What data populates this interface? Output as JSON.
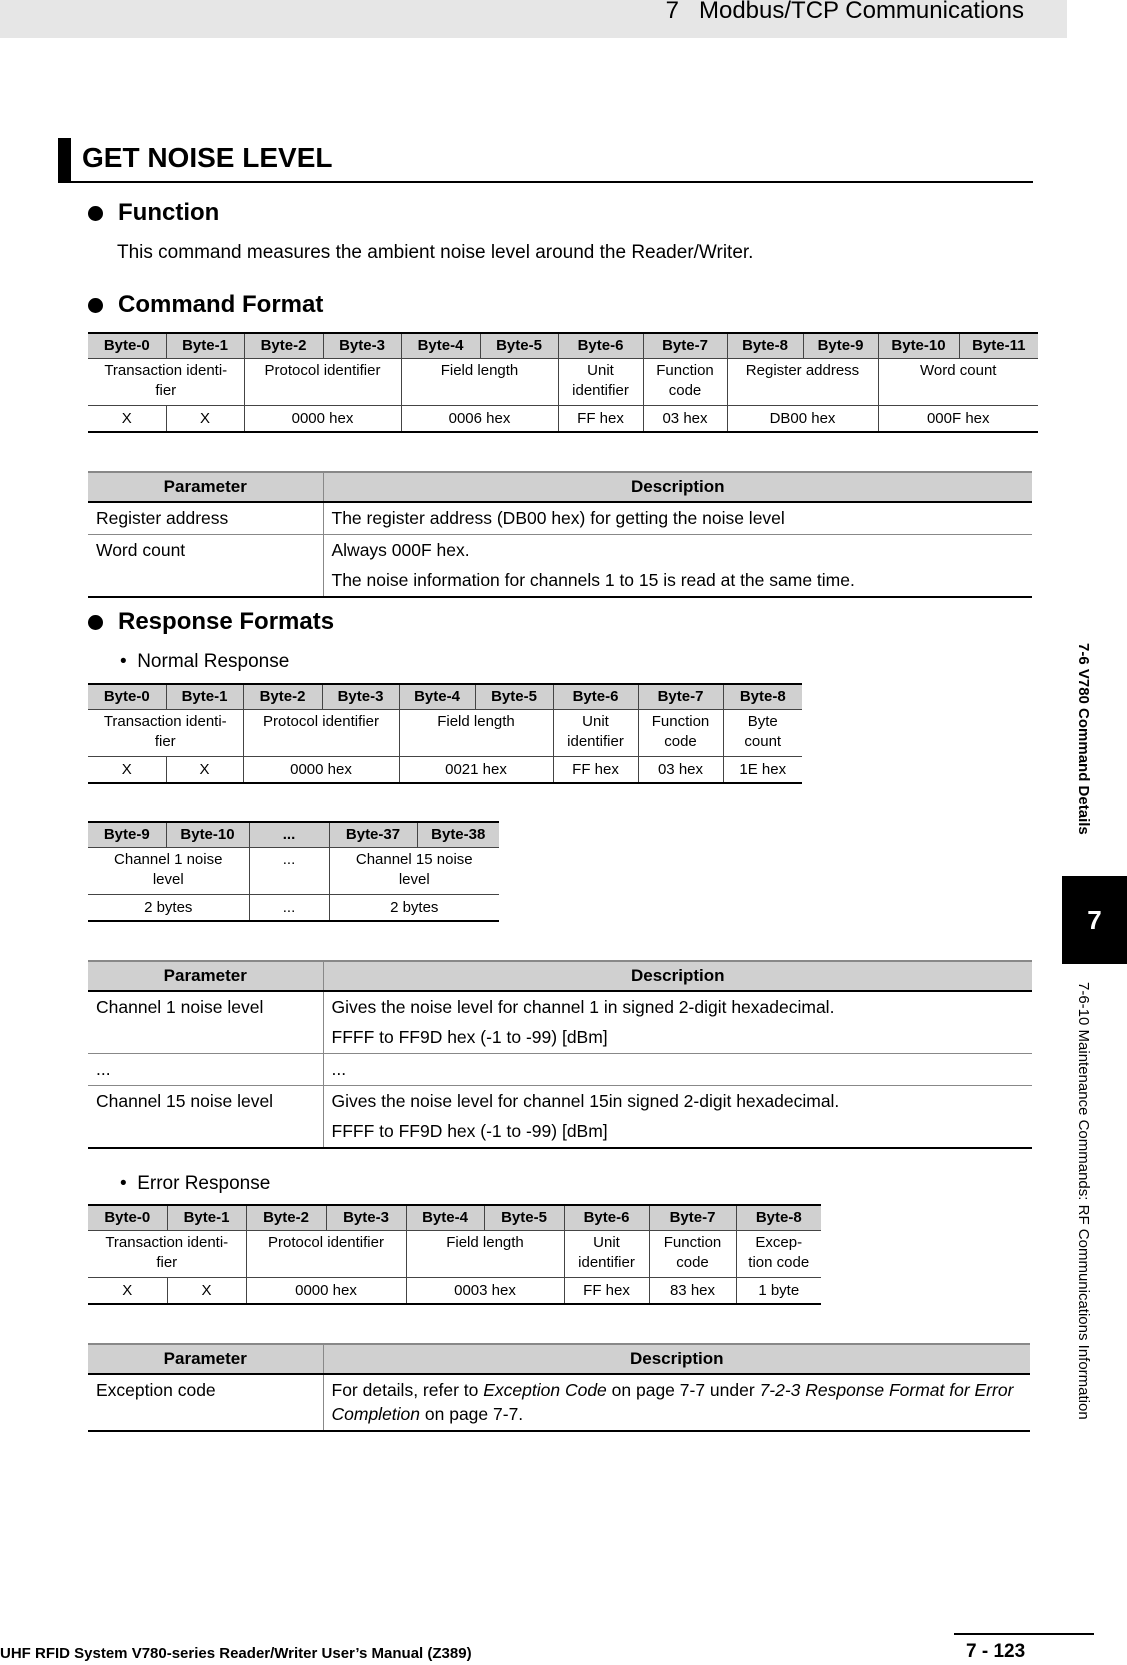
{
  "header": {
    "chapter": "7   Modbus/TCP Communications"
  },
  "title": "GET NOISE LEVEL",
  "function": {
    "heading": "Function",
    "text": "This command measures the ambient noise level around the Reader/Writer."
  },
  "command_format": {
    "heading": "Command Format",
    "table": {
      "headers": [
        "Byte-0",
        "Byte-1",
        "Byte-2",
        "Byte-3",
        "Byte-4",
        "Byte-5",
        "Byte-6",
        "Byte-7",
        "Byte-8",
        "Byte-9",
        "Byte-10",
        "Byte-11"
      ],
      "rows": [
        [
          {
            "text": "Transaction identi-\nfier",
            "span": 2
          },
          {
            "text": "Protocol identifier",
            "span": 2
          },
          {
            "text": "Field length",
            "span": 2
          },
          {
            "text": "Unit\nidentifier",
            "span": 1
          },
          {
            "text": "Function\ncode",
            "span": 1
          },
          {
            "text": "Register address",
            "span": 2
          },
          {
            "text": "Word count",
            "span": 2
          }
        ],
        [
          {
            "text": "X",
            "span": 1
          },
          {
            "text": "X",
            "span": 1
          },
          {
            "text": "0000 hex",
            "span": 2
          },
          {
            "text": "0006 hex",
            "span": 2
          },
          {
            "text": "FF hex",
            "span": 1
          },
          {
            "text": "03 hex",
            "span": 1
          },
          {
            "text": "DB00 hex",
            "span": 2
          },
          {
            "text": "000F hex",
            "span": 2
          }
        ]
      ]
    },
    "params": {
      "headers": [
        "Parameter",
        "Description"
      ],
      "rows": [
        {
          "param": "Register address",
          "desc": [
            "The register address (DB00 hex) for getting the noise level"
          ]
        },
        {
          "param": "Word count",
          "desc": [
            "Always 000F hex.",
            "The noise information for channels 1 to 15 is read at the same time."
          ]
        }
      ]
    }
  },
  "response_formats": {
    "heading": "Response Formats",
    "normal": {
      "label": "•  Normal Response",
      "table": {
        "headers": [
          "Byte-0",
          "Byte-1",
          "Byte-2",
          "Byte-3",
          "Byte-4",
          "Byte-5",
          "Byte-6",
          "Byte-7",
          "Byte-8"
        ],
        "rows": [
          [
            {
              "text": "Transaction identi-\nfier",
              "span": 2
            },
            {
              "text": "Protocol identifier",
              "span": 2
            },
            {
              "text": "Field length",
              "span": 2
            },
            {
              "text": "Unit\nidentifier",
              "span": 1
            },
            {
              "text": "Function\ncode",
              "span": 1
            },
            {
              "text": "Byte\ncount",
              "span": 1
            }
          ],
          [
            {
              "text": "X",
              "span": 1
            },
            {
              "text": "X",
              "span": 1
            },
            {
              "text": "0000 hex",
              "span": 2
            },
            {
              "text": "0021 hex",
              "span": 2
            },
            {
              "text": "FF hex",
              "span": 1
            },
            {
              "text": "03 hex",
              "span": 1
            },
            {
              "text": "1E hex",
              "span": 1
            }
          ]
        ]
      },
      "table2": {
        "headers": [
          "Byte-9",
          "Byte-10",
          "...",
          "Byte-37",
          "Byte-38"
        ],
        "rows": [
          [
            {
              "text": "Channel 1 noise\nlevel",
              "span": 2
            },
            {
              "text": "...",
              "span": 1
            },
            {
              "text": "Channel 15 noise\nlevel",
              "span": 2
            }
          ],
          [
            {
              "text": "2 bytes",
              "span": 2
            },
            {
              "text": "...",
              "span": 1
            },
            {
              "text": "2 bytes",
              "span": 2
            }
          ]
        ]
      },
      "params": {
        "headers": [
          "Parameter",
          "Description"
        ],
        "rows": [
          {
            "param": "Channel 1 noise level",
            "desc": [
              "Gives the noise level for channel 1 in signed 2-digit hexadecimal.",
              "FFFF to FF9D hex (-1 to -99) [dBm]"
            ]
          },
          {
            "param": "...",
            "desc": [
              "..."
            ]
          },
          {
            "param": "Channel 15 noise level",
            "desc": [
              "Gives the noise level for channel 15in signed 2-digit hexadecimal.",
              "FFFF to FF9D hex (-1 to -99) [dBm]"
            ]
          }
        ]
      }
    },
    "error": {
      "label": "•  Error Response",
      "table": {
        "headers": [
          "Byte-0",
          "Byte-1",
          "Byte-2",
          "Byte-3",
          "Byte-4",
          "Byte-5",
          "Byte-6",
          "Byte-7",
          "Byte-8"
        ],
        "rows": [
          [
            {
              "text": "Transaction identi-\nfier",
              "span": 2
            },
            {
              "text": "Protocol identifier",
              "span": 2
            },
            {
              "text": "Field length",
              "span": 2
            },
            {
              "text": "Unit\nidentifier",
              "span": 1
            },
            {
              "text": "Function\ncode",
              "span": 1
            },
            {
              "text": "Excep-\ntion code",
              "span": 1
            }
          ],
          [
            {
              "text": "X",
              "span": 1
            },
            {
              "text": "X",
              "span": 1
            },
            {
              "text": "0000 hex",
              "span": 2
            },
            {
              "text": "0003 hex",
              "span": 2
            },
            {
              "text": "FF hex",
              "span": 1
            },
            {
              "text": "83 hex",
              "span": 1
            },
            {
              "text": "1 byte",
              "span": 1
            }
          ]
        ]
      },
      "params": {
        "headers": [
          "Parameter",
          "Description"
        ],
        "rows": [
          {
            "param": "Exception code",
            "desc": [
              [
                {
                  "text": "For details, refer to "
                },
                {
                  "text": "Exception Code",
                  "italic": true
                },
                {
                  "text": " on page 7-7 under "
                },
                {
                  "text": "7-2-3 Response Format for Error Completion",
                  "italic": true
                },
                {
                  "text": " on page 7-7."
                }
              ]
            ]
          }
        ]
      }
    }
  },
  "side_tab": {
    "section": "7-6  V780 Command Details",
    "chapter_number": "7",
    "subsection": "7-6-10  Maintenance Commands: RF Communications Information"
  },
  "footer": {
    "manual": "UHF RFID System V780-series Reader/Writer User’s Manual (Z389)",
    "page": "7 - 123"
  }
}
